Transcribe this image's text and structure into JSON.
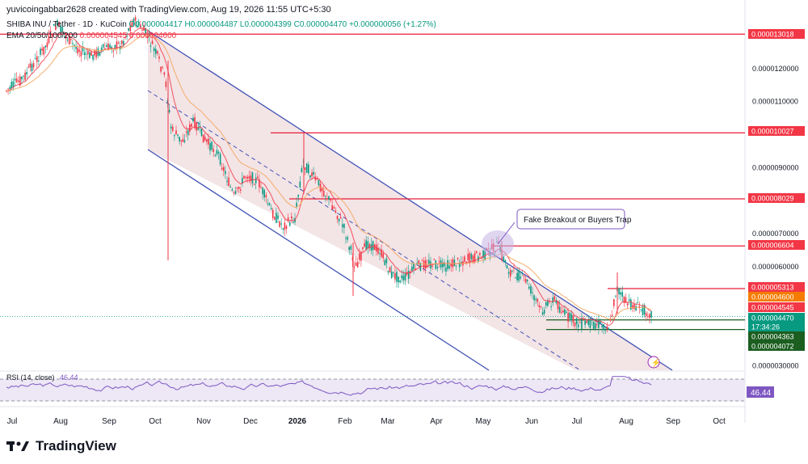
{
  "header": {
    "created_by": "yuvicoingabbar2628 created with TradingView.com, Aug 19, 2026 11:55 UTC+5:30"
  },
  "legend": {
    "symbol": "SHIBA INU / Tether · 1D · KuCoin",
    "ohlc": "O0.000004417 H0.000004487 L0.000004399 C0.000004470 +0.000000056 (+1.27%)",
    "ema_label": "EMA 20/50/100/200",
    "ema_values": "0.000004545 0.000004600"
  },
  "footer": {
    "brand": "TradingView"
  },
  "colors": {
    "up": "#089981",
    "down": "#f23645",
    "channel": "#3f51b5",
    "channel_fill": "#f3e4e6",
    "ema_fast": "#f23645",
    "ema_slow": "#f5a55c",
    "level": "#e91e37",
    "support": "#1b5e20",
    "rsi": "#7e57c2"
  },
  "chart_data": {
    "type": "candlestick",
    "symbol": "SHIBA INU / Tether",
    "interval": "1D",
    "exchange": "KuCoin",
    "price_axis_labels": [
      "0.0000120000",
      "0.0000110000",
      "0.0000090000",
      "0.0000070000",
      "0.0000060000",
      "0.0000030000"
    ],
    "time_axis_labels": [
      "Jul",
      "Aug",
      "Sep",
      "Oct",
      "Nov",
      "Dec",
      "2026",
      "Feb",
      "Mar",
      "Apr",
      "May",
      "Jun",
      "Jul",
      "Aug",
      "Sep",
      "Oct"
    ],
    "horizontal_levels": [
      {
        "price": "0.000013018",
        "kind": "resistance"
      },
      {
        "price": "0.000010027",
        "kind": "resistance"
      },
      {
        "price": "0.000008029",
        "kind": "resistance"
      },
      {
        "price": "0.000006604",
        "kind": "resistance"
      },
      {
        "price": "0.000005313",
        "kind": "resistance"
      },
      {
        "price": "0.000004363",
        "kind": "support"
      },
      {
        "price": "0.000004072",
        "kind": "support"
      }
    ],
    "price_tags": [
      {
        "text": "0.000013018",
        "color": "#f23645"
      },
      {
        "text": "0.000010027",
        "color": "#f23645"
      },
      {
        "text": "0.000008029",
        "color": "#f23645"
      },
      {
        "text": "0.000006604",
        "color": "#f23645"
      },
      {
        "text": "0.000005313",
        "color": "#f23645"
      },
      {
        "text": "0.000004600",
        "color": "#f57c00"
      },
      {
        "text": "0.000004545",
        "color": "#f23645"
      },
      {
        "text": "0.000004470",
        "color": "#089981"
      },
      {
        "text": "17:34:26",
        "color": "#089981"
      },
      {
        "text": "0.000004363",
        "color": "#1b5e20"
      },
      {
        "text": "0.000004072",
        "color": "#1b5e20"
      }
    ],
    "annotation": "Fake Breakout or Buyers Trap",
    "last_close": "0.000004470",
    "change": "+0.000000056 (+1.27%)",
    "rsi": {
      "label": "RSI (14, close)",
      "value": "46.44",
      "upper": 70,
      "lower": 30
    }
  }
}
